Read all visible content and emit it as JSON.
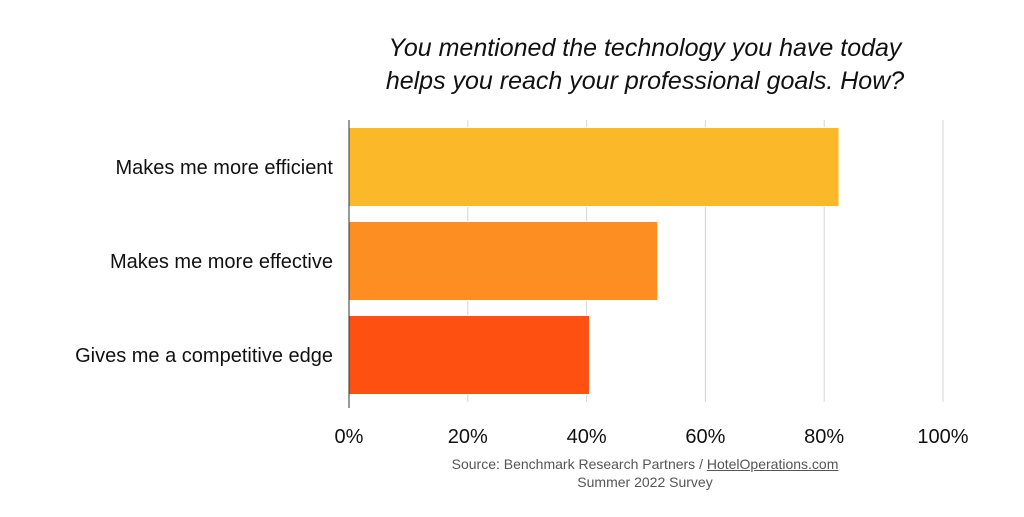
{
  "chart_data": {
    "type": "bar",
    "orientation": "horizontal",
    "title_lines": [
      "You mentioned the technology you have today",
      "helps you reach your professional goals. How?"
    ],
    "categories": [
      "Makes me more efficient",
      "Makes me more effective",
      "Gives me a competitive edge"
    ],
    "values": [
      82.5,
      52,
      40.5
    ],
    "colors": [
      "#FBB829",
      "#FD8E22",
      "#FD5011"
    ],
    "xlim": [
      0,
      100
    ],
    "xticks": [
      0,
      20,
      40,
      60,
      80,
      100
    ],
    "xtick_labels": [
      "0%",
      "20%",
      "40%",
      "60%",
      "80%",
      "100%"
    ],
    "grid": true,
    "xlabel": "",
    "ylabel": ""
  },
  "footer": {
    "source_prefix": "Source: Benchmark Research Partners / ",
    "source_link": "HotelOperations.com",
    "survey": "Summer 2022 Survey"
  }
}
